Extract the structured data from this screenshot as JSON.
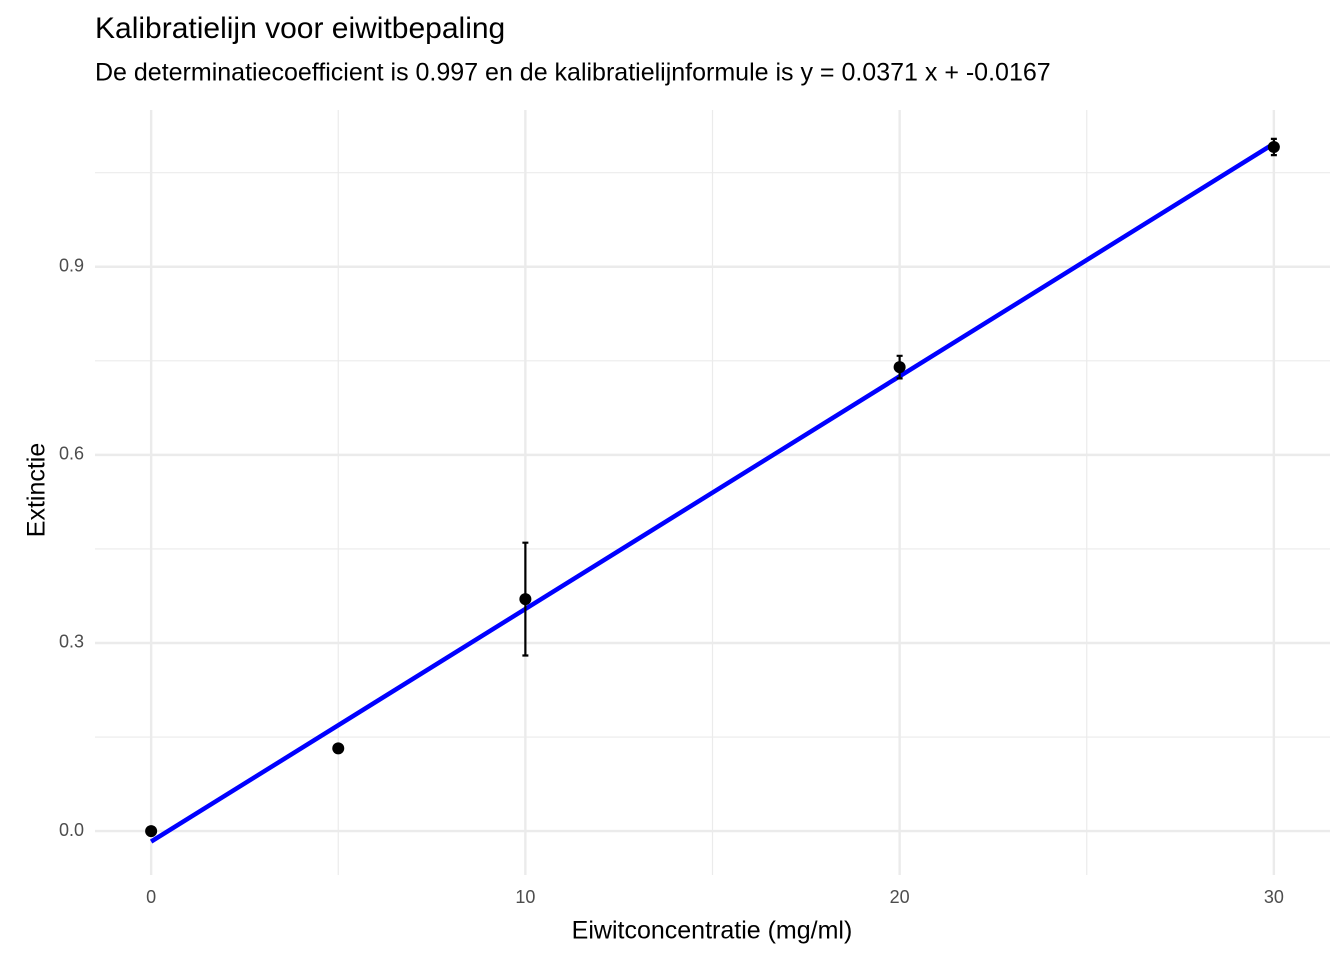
{
  "chart_data": {
    "type": "scatter",
    "title": "Kalibratielijn voor eiwitbepaling",
    "subtitle": "De determinatiecoefficient is 0.997 en de kalibratielijnformule is y =  0.0371 x + -0.0167",
    "x_label": "Eiwitconcentratie (mg/ml)",
    "y_label": "Extinctie",
    "series": [
      {
        "type": "scatter",
        "color": "#000000",
        "x": [
          0,
          5,
          10,
          20,
          30
        ],
        "values": [
          0,
          0.132,
          0.37,
          0.74,
          1.091
        ],
        "errors": [
          null,
          null,
          0.09,
          0.018,
          0.013
        ]
      },
      {
        "type": "line",
        "color": "#0000ff",
        "x": [
          0,
          30
        ],
        "values": [
          -0.0167,
          1.0963
        ]
      }
    ],
    "xlim": [
      -1.5,
      31.5
    ],
    "ylim": [
      -0.07,
      1.15
    ],
    "xticks": [
      0,
      10,
      20,
      30
    ],
    "yticks": [
      {
        "value": 0,
        "label": "0.0"
      },
      0.3,
      0.6,
      0.9
    ],
    "minor_xticks": [
      5,
      15,
      25
    ],
    "minor_yticks": [
      0.15,
      0.45,
      0.75,
      1.05
    ],
    "grid": true
  }
}
